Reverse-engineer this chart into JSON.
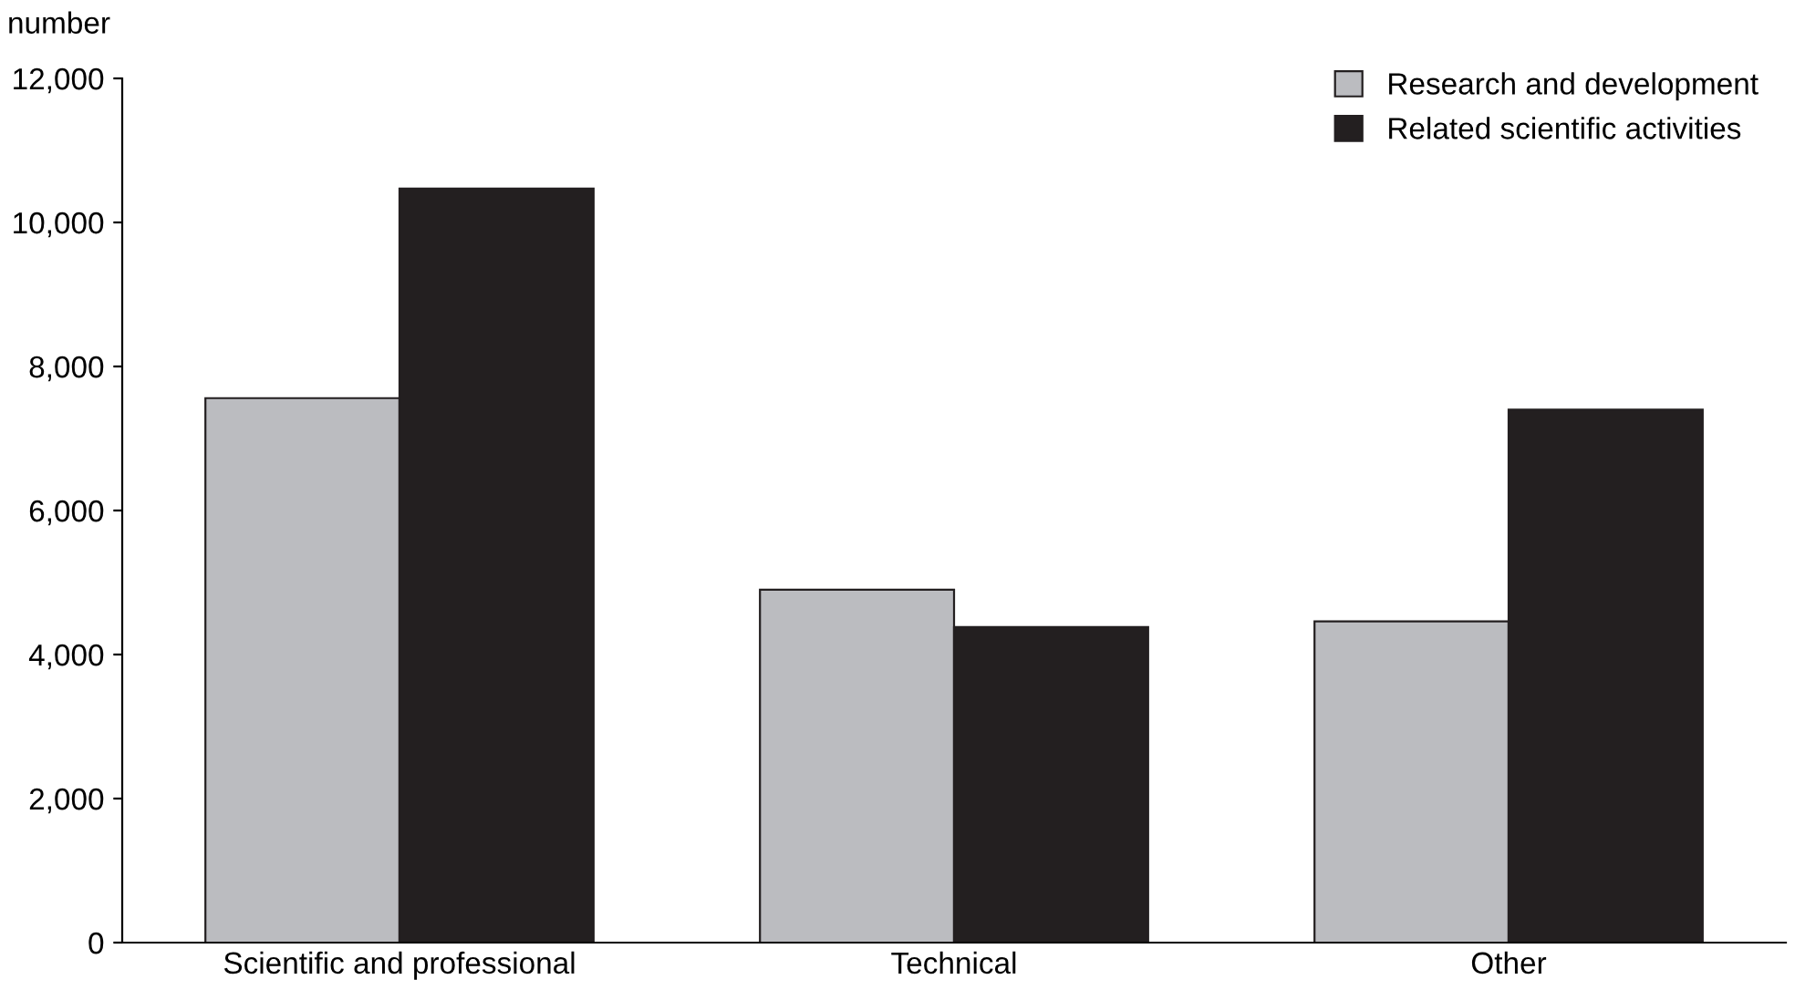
{
  "chart_data": {
    "type": "bar",
    "ylabel": "number",
    "categories": [
      "Scientific and professional",
      "Technical",
      "Other"
    ],
    "series": [
      {
        "name": "Research and development",
        "color": "#bbbcc0",
        "values": [
          7560,
          4900,
          4460
        ]
      },
      {
        "name": "Related scientific activities",
        "color": "#231f20",
        "values": [
          10470,
          4380,
          7400
        ]
      }
    ],
    "ylim": [
      0,
      12000
    ],
    "yticks": [
      {
        "value": 0,
        "label": "0"
      },
      {
        "value": 2000,
        "label": "2,000"
      },
      {
        "value": 4000,
        "label": "4,000"
      },
      {
        "value": 6000,
        "label": "6,000"
      },
      {
        "value": 8000,
        "label": "8,000"
      },
      {
        "value": 10000,
        "label": "10,000"
      },
      {
        "value": 12000,
        "label": "12,000"
      }
    ],
    "grid": false,
    "legend": "top right"
  }
}
